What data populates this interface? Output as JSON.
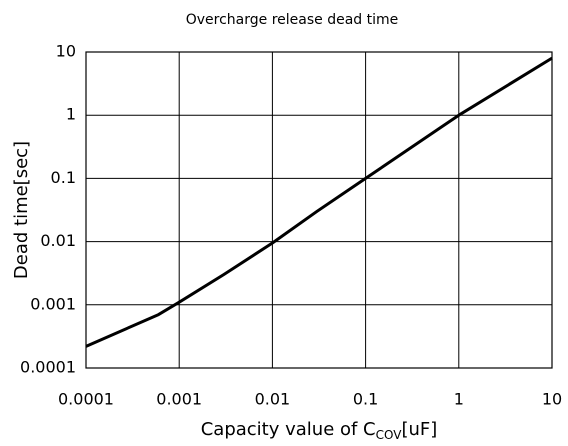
{
  "chart_data": {
    "type": "line",
    "title": "Overcharge release dead time",
    "xlabel": {
      "text": "Capacity value of C",
      "subscript": "COV",
      "suffix": "[uF]"
    },
    "ylabel": "Dead time[sec]",
    "xscale": "log",
    "yscale": "log",
    "grid": true,
    "xlim": [
      0.0001,
      10
    ],
    "ylim": [
      0.0001,
      10
    ],
    "xticks": [
      0.0001,
      0.001,
      0.01,
      0.1,
      1,
      10
    ],
    "yticks": [
      0.0001,
      0.001,
      0.01,
      0.1,
      1,
      10
    ],
    "series": [
      {
        "color": "#000000",
        "x": [
          0.0001,
          0.0006,
          0.001,
          0.003,
          0.01,
          0.03,
          0.1,
          1,
          10
        ],
        "values": [
          0.00022,
          0.0007,
          0.0011,
          0.003,
          0.0095,
          0.03,
          0.1,
          1,
          8
        ]
      }
    ]
  }
}
